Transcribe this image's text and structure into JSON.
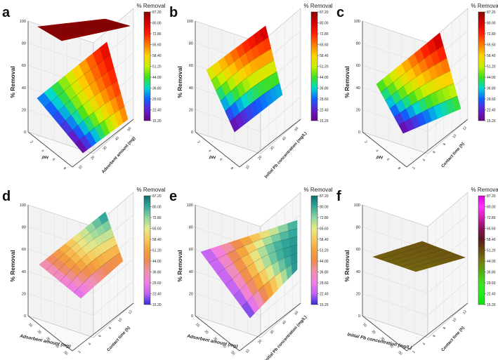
{
  "figure": {
    "title": ""
  },
  "chart_data": [
    {
      "type": "surface3d",
      "panel": "a",
      "zlabel": "% Removal",
      "ylabel": "pH",
      "xlabel": "Adsorbent amount (mg)",
      "zlim": [
        0,
        100
      ],
      "z_ticks": [
        "0",
        "20",
        "40",
        "60",
        "80",
        "100"
      ],
      "y_ticks": [
        "2",
        "4",
        "6",
        "8"
      ],
      "x_ticks": [
        "10",
        "20",
        "30",
        "40",
        "50"
      ],
      "colorbar": {
        "title": "% Removal",
        "ticks": [
          "87.20",
          "80.00",
          "72.80",
          "65.60",
          "58.40",
          "51.20",
          "44.00",
          "36.80",
          "29.60",
          "22.40",
          "15.20"
        ],
        "palette": "rainbow"
      },
      "surfaces": [
        {
          "name": "upper plane",
          "corners_percent_removal": [
            90,
            92,
            88,
            86
          ]
        },
        {
          "name": "lower surface",
          "corners_percent_removal": [
            30,
            80,
            65,
            15
          ]
        }
      ]
    },
    {
      "type": "surface3d",
      "panel": "b",
      "zlabel": "% Removal",
      "ylabel": "pH",
      "xlabel": "Initial Pb concentration (mg/L)",
      "zlim": [
        0,
        100
      ],
      "z_ticks": [
        "0",
        "20",
        "40",
        "60",
        "80",
        "100"
      ],
      "y_ticks": [
        "2",
        "4",
        "6",
        "8"
      ],
      "x_ticks": [
        "10",
        "20",
        "30",
        "40",
        "50"
      ],
      "colorbar": {
        "title": "% Removal",
        "ticks": [
          "87.20",
          "80.00",
          "72.80",
          "65.60",
          "58.40",
          "51.20",
          "44.00",
          "36.80",
          "29.60",
          "22.40",
          "15.20"
        ],
        "palette": "rainbow"
      },
      "surfaces": [
        {
          "name": "surface",
          "corners_percent_removal": [
            55,
            85,
            30,
            15
          ]
        }
      ]
    },
    {
      "type": "surface3d",
      "panel": "c",
      "zlabel": "% Removal",
      "ylabel": "pH",
      "xlabel": "Contact time (h)",
      "zlim": [
        0,
        100
      ],
      "z_ticks": [
        "0",
        "20",
        "40",
        "60",
        "80",
        "100"
      ],
      "y_ticks": [
        "2",
        "4",
        "6",
        "8"
      ],
      "x_ticks": [
        "2",
        "4",
        "6",
        "8",
        "10",
        "12"
      ],
      "colorbar": {
        "title": "% Removal",
        "ticks": [
          "87.20",
          "80.00",
          "72.80",
          "65.60",
          "58.40",
          "51.20",
          "44.00",
          "36.80",
          "29.60",
          "22.40",
          "15.20"
        ],
        "palette": "rainbow"
      },
      "surfaces": [
        {
          "name": "surface",
          "corners_percent_removal": [
            45,
            85,
            40,
            15
          ]
        }
      ]
    },
    {
      "type": "surface3d",
      "panel": "d",
      "zlabel": "% Removal",
      "ylabel": "Adsorbent amount (mg)",
      "xlabel": "Contact time (h)",
      "zlim": [
        0,
        100
      ],
      "z_ticks": [
        "0",
        "20",
        "40",
        "60",
        "80",
        "100"
      ],
      "y_ticks": [
        "10",
        "20",
        "30",
        "40",
        "50"
      ],
      "x_ticks": [
        "2",
        "4",
        "6",
        "8",
        "10",
        "12"
      ],
      "colorbar": {
        "title": "% Removal",
        "ticks": [
          "87.20",
          "80.00",
          "72.80",
          "65.60",
          "58.40",
          "51.20",
          "44.00",
          "36.80",
          "29.60",
          "22.40",
          "15.20"
        ],
        "palette": "teal-orange-magenta"
      },
      "surfaces": [
        {
          "name": "surface",
          "corners_percent_removal": [
            35,
            85,
            45,
            25
          ]
        }
      ]
    },
    {
      "type": "surface3d",
      "panel": "e",
      "zlabel": "% Removal",
      "ylabel": "Adsorbent amount (mg)",
      "xlabel": "Initial Pb concentration (mg/L)",
      "zlim": [
        0,
        100
      ],
      "z_ticks": [
        "0",
        "20",
        "40",
        "60",
        "80",
        "100"
      ],
      "y_ticks": [
        "10",
        "20",
        "30",
        "40",
        "50"
      ],
      "x_ticks": [
        "10",
        "20",
        "30",
        "40",
        "50"
      ],
      "colorbar": {
        "title": "% Removal",
        "ticks": [
          "87.20",
          "80.00",
          "72.80",
          "65.60",
          "58.40",
          "51.20",
          "44.00",
          "36.80",
          "29.60",
          "22.40",
          "15.20"
        ],
        "palette": "teal-orange-magenta"
      },
      "surfaces": [
        {
          "name": "surface",
          "corners_percent_removal": [
            20,
            80,
            85,
            15
          ]
        }
      ]
    },
    {
      "type": "surface3d",
      "panel": "f",
      "zlabel": "% Removal",
      "ylabel": "Initial Pb concentration (mg/L)",
      "xlabel": "Contact time (h)",
      "zlim": [
        0,
        100
      ],
      "z_ticks": [
        "0",
        "20",
        "40",
        "60",
        "80",
        "100"
      ],
      "y_ticks": [
        "10",
        "20",
        "30",
        "40",
        "50"
      ],
      "x_ticks": [
        "2",
        "4",
        "6",
        "8",
        "10",
        "12"
      ],
      "colorbar": {
        "title": "% Removal",
        "ticks": [
          "87.20",
          "80.00",
          "72.80",
          "65.60",
          "58.40",
          "51.20",
          "44.00",
          "36.80",
          "29.60",
          "22.40",
          "15.20"
        ],
        "palette": "magenta-green"
      },
      "surfaces": [
        {
          "name": "flat surface",
          "corners_percent_removal": [
            48,
            50,
            49,
            47
          ]
        }
      ]
    }
  ]
}
